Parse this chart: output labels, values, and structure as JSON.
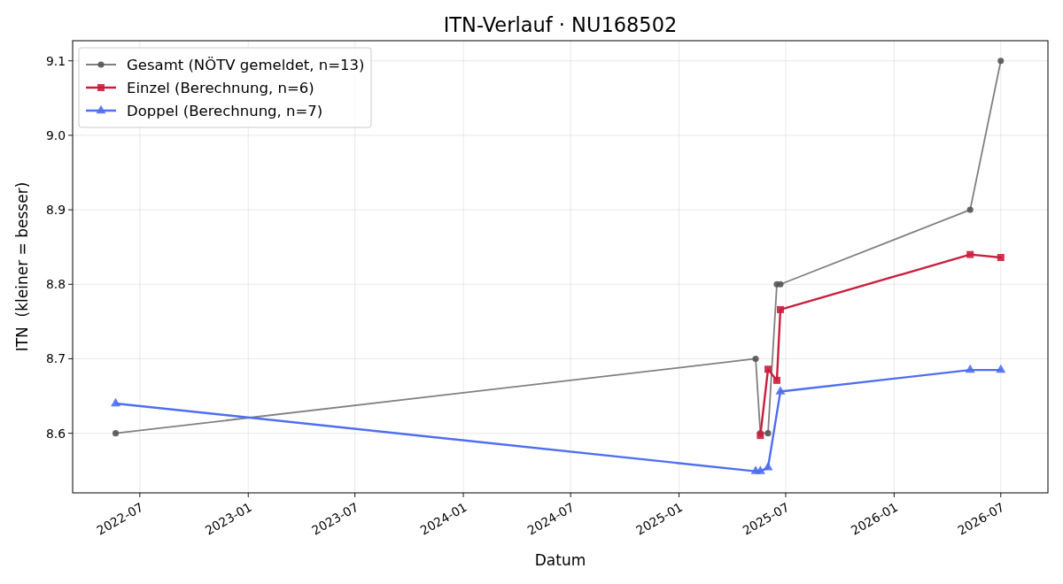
{
  "chart_data": {
    "type": "line",
    "title": "ITN-Verlauf · NU168502",
    "xlabel": "Datum",
    "ylabel": "ITN  (kleiner = besser)",
    "xlim": [
      "2022-03-09",
      "2026-09-19"
    ],
    "xticks": [
      "2022-07",
      "2023-01",
      "2023-07",
      "2024-01",
      "2024-07",
      "2025-01",
      "2025-07",
      "2026-01",
      "2026-07"
    ],
    "ylim": [
      8.52,
      9.127
    ],
    "yticks": [
      8.6,
      8.7,
      8.8,
      8.9,
      {
        "value": 9,
        "label": "9.0"
      },
      9.1
    ],
    "grid": true,
    "legend": "top left",
    "line_style": "solid",
    "series": [
      {
        "name": "Gesamt (NÖTV gemeldet, n=13)",
        "color": "#555555",
        "marker": "circle",
        "x": [
          "2022-05-21",
          "2025-05-11",
          "2025-05-19",
          "2025-06-01",
          "2025-06-16",
          "2025-06-22",
          "2026-05-10",
          "2026-07-01"
        ],
        "values": [
          8.6,
          8.7,
          8.6,
          8.6,
          8.8,
          8.8,
          8.9,
          9.1
        ]
      },
      {
        "name": "Einzel (Berechnung, n=6)",
        "color": "#c91f3e",
        "marker": "square",
        "x": [
          "2025-05-19",
          "2025-06-01",
          "2025-06-16",
          "2025-06-22",
          "2026-05-10",
          "2026-07-01"
        ],
        "values": [
          8.597,
          8.686,
          8.671,
          8.766,
          8.84,
          8.836
        ]
      },
      {
        "name": "Doppel (Berechnung, n=7)",
        "color": "#4f6ef0",
        "marker": "triangle",
        "x": [
          "2022-05-21",
          "2025-05-11",
          "2025-05-19",
          "2025-06-01",
          "2025-06-22",
          "2026-05-10",
          "2026-07-01"
        ],
        "values": [
          8.64,
          8.549,
          8.549,
          8.554,
          8.656,
          8.685,
          8.685
        ]
      }
    ]
  }
}
